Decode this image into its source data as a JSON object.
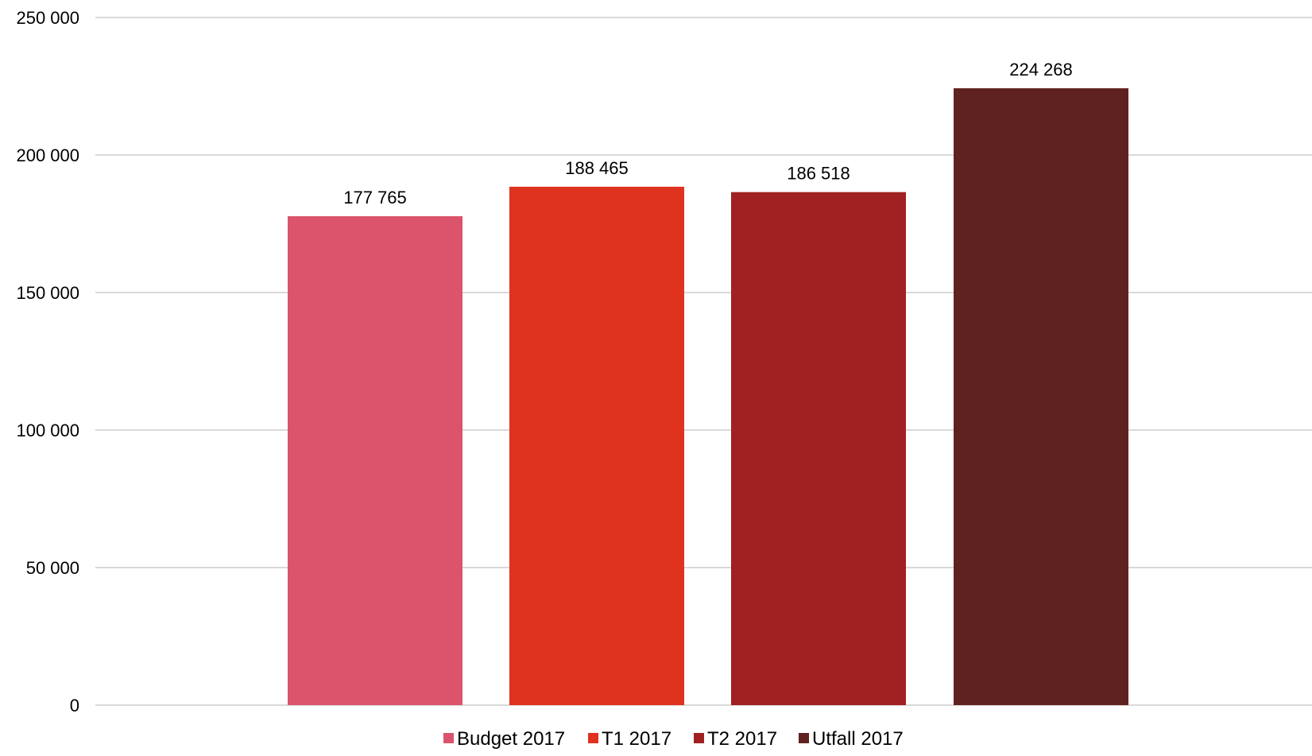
{
  "chart_data": {
    "type": "bar",
    "title": "",
    "xlabel": "",
    "ylabel": "",
    "ylim": [
      0,
      250000
    ],
    "yticks": [
      0,
      50000,
      100000,
      150000,
      200000,
      250000
    ],
    "ytick_labels": [
      "0",
      "50 000",
      "100 000",
      "150 000",
      "200 000",
      "250 000"
    ],
    "grid": true,
    "legend_position": "bottom",
    "series": [
      {
        "name": "Budget 2017",
        "value": 177765,
        "label": "177 765",
        "color": "#db546b"
      },
      {
        "name": "T1 2017",
        "value": 188465,
        "label": "188 465",
        "color": "#df321f"
      },
      {
        "name": "T2 2017",
        "value": 186518,
        "label": "186 518",
        "color": "#a12021"
      },
      {
        "name": "Utfall 2017",
        "value": 224268,
        "label": "224 268",
        "color": "#602220"
      }
    ]
  }
}
